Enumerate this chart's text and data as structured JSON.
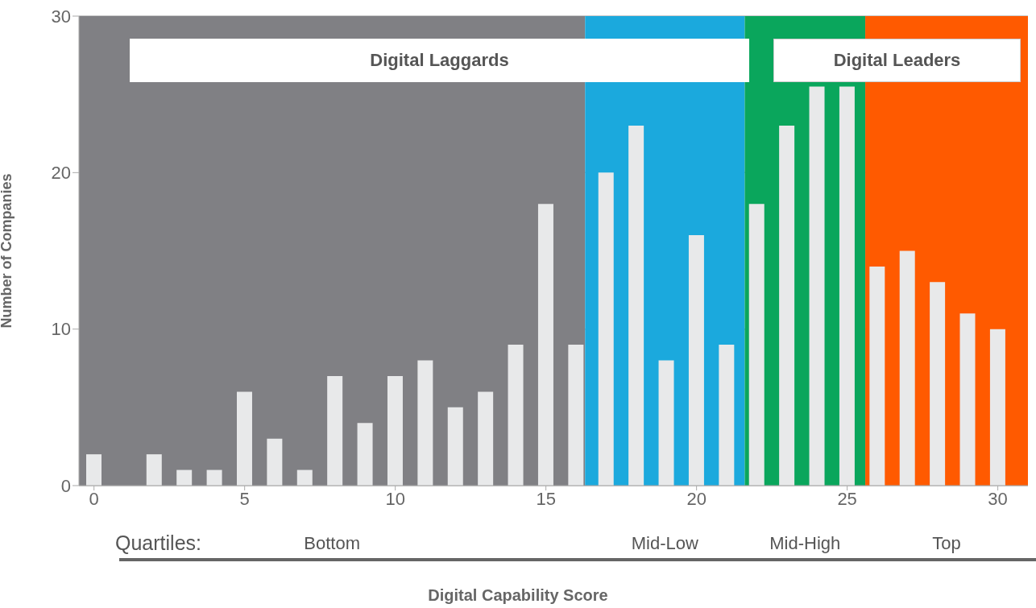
{
  "chart_data": {
    "type": "bar",
    "xlabel": "Digital Capability Score",
    "ylabel": "Number of Companies",
    "x": [
      0,
      1,
      2,
      3,
      4,
      5,
      6,
      7,
      8,
      9,
      10,
      11,
      12,
      13,
      14,
      15,
      16,
      17,
      18,
      19,
      20,
      21,
      22,
      23,
      24,
      25,
      26,
      27,
      28,
      29,
      30
    ],
    "values": [
      2,
      0,
      2,
      1,
      1,
      6,
      3,
      1,
      7,
      4,
      7,
      8,
      5,
      6,
      9,
      18,
      9,
      20,
      23,
      8,
      16,
      9,
      18,
      23,
      25.5,
      25.5,
      14,
      15,
      13,
      11,
      10
    ],
    "color": "#e8e9ea",
    "xlim": [
      -0.5,
      31
    ],
    "xticks": [
      0,
      5,
      10,
      15,
      20,
      25,
      30
    ],
    "ylim": [
      0,
      30
    ],
    "yticks": [
      0,
      10,
      20,
      30
    ],
    "grid": "y",
    "bands": [
      {
        "axis": "x",
        "from": -0.5,
        "to": 16.3,
        "label": "Bottom",
        "color": "#808084"
      },
      {
        "axis": "x",
        "from": 16.3,
        "to": 21.6,
        "label": "Mid-Low",
        "color": "#1ba9dd"
      },
      {
        "axis": "x",
        "from": 21.6,
        "to": 25.6,
        "label": "Mid-High",
        "color": "#0aa65c"
      },
      {
        "axis": "x",
        "from": 25.6,
        "to": 31,
        "label": "Top",
        "color": "#ff5a00"
      }
    ],
    "annotations": [
      "Quartiles:",
      "Digital Laggards",
      "Digital Leaders"
    ]
  }
}
